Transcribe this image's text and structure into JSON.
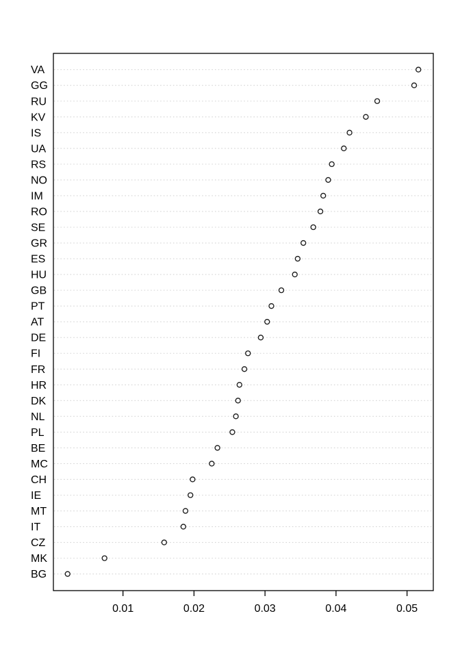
{
  "figure": {
    "kind": "R-style dot chart",
    "title": "",
    "xlabel": "",
    "ylabel": ""
  },
  "chart_data": {
    "type": "scatter",
    "subtype": "dotchart",
    "orientation": "horizontal",
    "title": "",
    "xlabel": "",
    "ylabel": "",
    "categories": [
      "VA",
      "GG",
      "RU",
      "KV",
      "IS",
      "UA",
      "RS",
      "NO",
      "IM",
      "RO",
      "SE",
      "GR",
      "ES",
      "HU",
      "GB",
      "PT",
      "AT",
      "DE",
      "FI",
      "FR",
      "HR",
      "DK",
      "NL",
      "PL",
      "BE",
      "MC",
      "CH",
      "IE",
      "MT",
      "IT",
      "CZ",
      "MK",
      "BG"
    ],
    "values": [
      0.0516,
      0.051,
      0.0458,
      0.0442,
      0.0419,
      0.0411,
      0.0394,
      0.0389,
      0.0382,
      0.0378,
      0.0368,
      0.0354,
      0.0346,
      0.0342,
      0.0323,
      0.0309,
      0.0303,
      0.0294,
      0.0276,
      0.0271,
      0.0264,
      0.0262,
      0.0259,
      0.0254,
      0.0233,
      0.0225,
      0.0198,
      0.0195,
      0.0188,
      0.0185,
      0.0158,
      0.0074,
      0.0022
    ],
    "xlim": [
      0.0002,
      0.0537
    ],
    "x_tick_values": [
      0.01,
      0.02,
      0.03,
      0.04,
      0.05
    ],
    "x_tick_labels": [
      "0.01",
      "0.02",
      "0.03",
      "0.04",
      "0.05"
    ],
    "grid": "horizontal-dotted",
    "legend_position": "none",
    "point_shape": "open-circle",
    "colors": {
      "background": "#ffffff",
      "plot_border": "#000000",
      "grid": "#d4d4d4",
      "point_stroke": "#1a1a1a",
      "point_fill": "#ffffff",
      "text": "#000000"
    }
  }
}
